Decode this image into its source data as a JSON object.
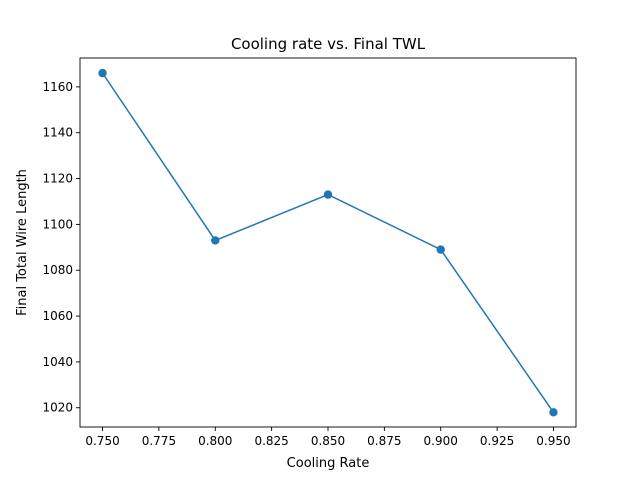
{
  "chart_data": {
    "type": "line",
    "title": "Cooling rate vs. Final TWL",
    "xlabel": "Cooling Rate",
    "ylabel": "Final Total Wire Length",
    "x": [
      0.75,
      0.8,
      0.85,
      0.9,
      0.95
    ],
    "series": [
      {
        "values": [
          1166,
          1093,
          1113,
          1089,
          1018
        ],
        "color": "#1f77b4",
        "marker": "circle"
      }
    ],
    "xlim": [
      0.74,
      0.96
    ],
    "ylim": [
      1011.6,
      1172.6
    ],
    "xticks": [
      0.75,
      0.775,
      0.8,
      0.825,
      0.85,
      0.875,
      0.9,
      0.925,
      0.95
    ],
    "xtick_labels": [
      "0.750",
      "0.775",
      "0.800",
      "0.825",
      "0.850",
      "0.875",
      "0.900",
      "0.925",
      "0.950"
    ],
    "yticks": [
      1020,
      1040,
      1060,
      1080,
      1100,
      1120,
      1140,
      1160
    ],
    "ytick_labels": [
      "1020",
      "1040",
      "1060",
      "1080",
      "1100",
      "1120",
      "1140",
      "1160"
    ],
    "grid": false,
    "legend": false
  }
}
